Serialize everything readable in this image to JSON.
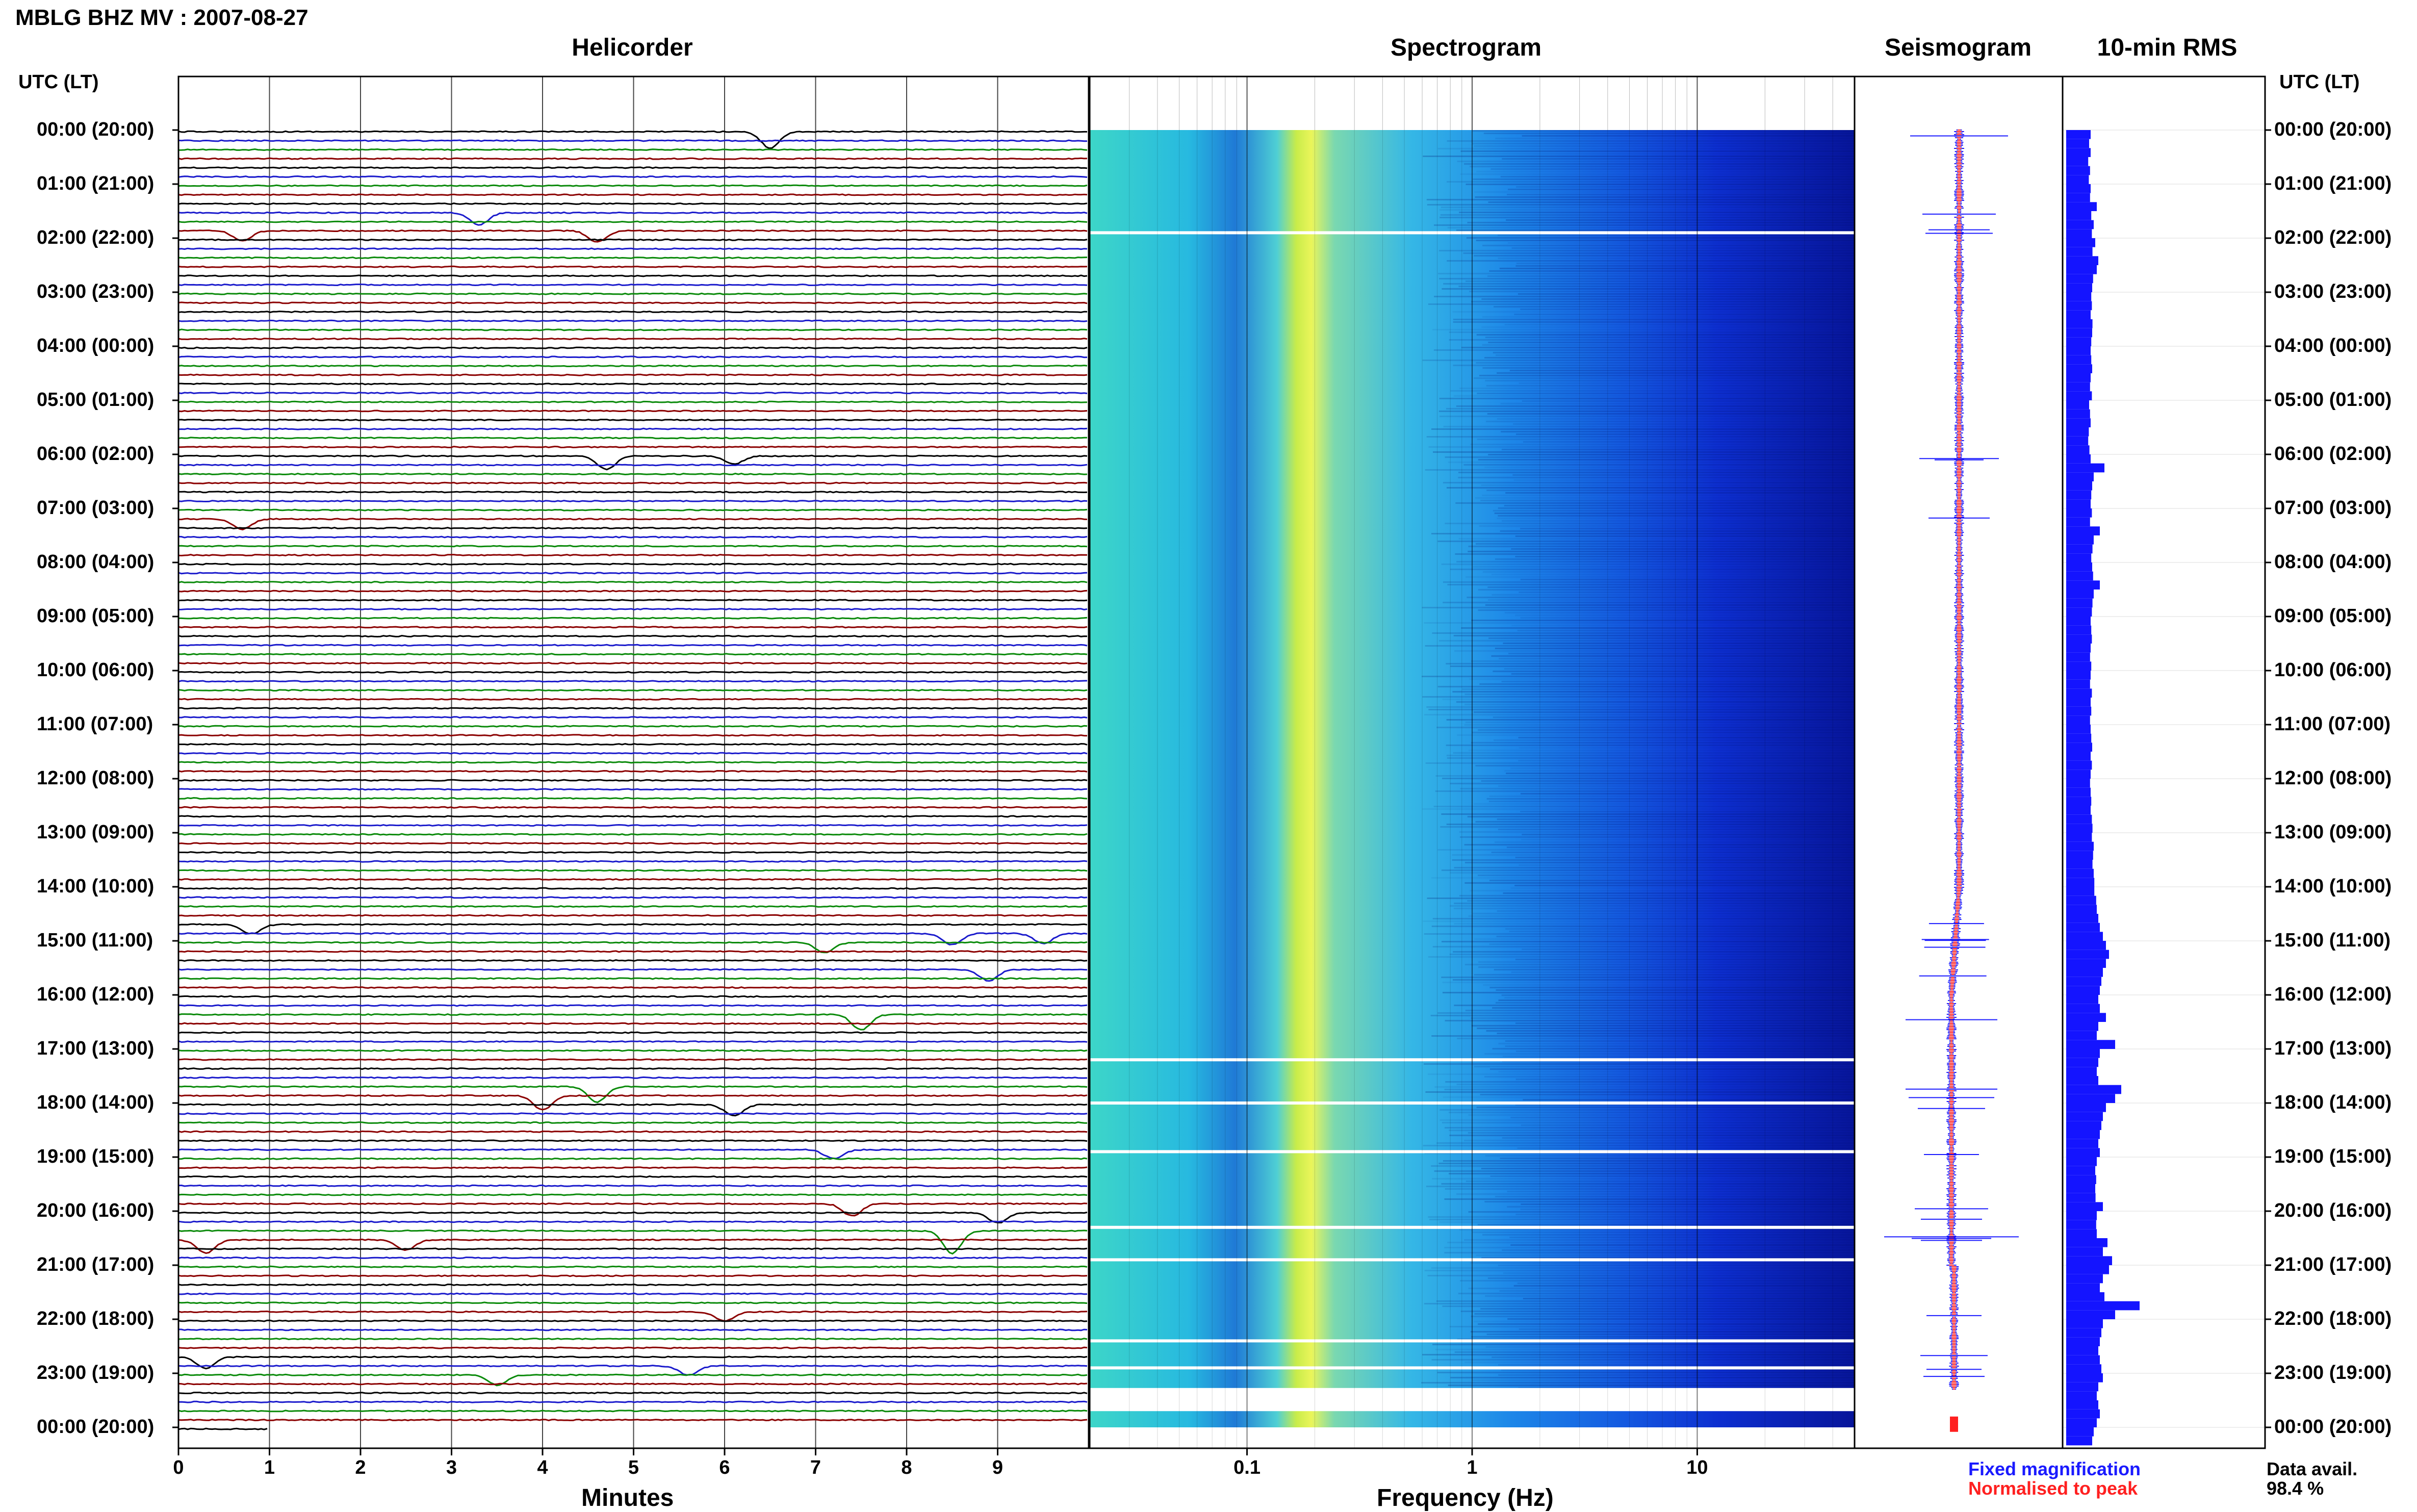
{
  "header": {
    "station_title": "MBLG BHZ MV : 2007-08-27",
    "utc_label": "UTC (LT)",
    "utc_label_right": "UTC (LT)"
  },
  "panels": {
    "helicorder": "Helicorder",
    "spectrogram": "Spectrogram",
    "seismogram": "Seismogram",
    "rms": "10-min RMS"
  },
  "time_labels": [
    "00:00 (20:00)",
    "01:00 (21:00)",
    "02:00 (22:00)",
    "03:00 (23:00)",
    "04:00 (00:00)",
    "05:00 (01:00)",
    "06:00 (02:00)",
    "07:00 (03:00)",
    "08:00 (04:00)",
    "09:00 (05:00)",
    "10:00 (06:00)",
    "11:00 (07:00)",
    "12:00 (08:00)",
    "13:00 (09:00)",
    "14:00 (10:00)",
    "15:00 (11:00)",
    "16:00 (12:00)",
    "17:00 (13:00)",
    "18:00 (14:00)",
    "19:00 (15:00)",
    "20:00 (16:00)",
    "21:00 (17:00)",
    "22:00 (18:00)",
    "23:00 (19:00)",
    "00:00 (20:00)"
  ],
  "footer": {
    "minutes_label": "Minutes",
    "frequency_label": "Frequency (Hz)",
    "fixed_magnification": "Fixed magnification",
    "normalised_to_peak": "Normalised to peak",
    "data_avail_label": "Data avail.",
    "data_avail_value": "98.4 %"
  },
  "colors": {
    "trace_cycle": [
      "#000000",
      "#1a1acc",
      "#0a8a0a",
      "#8b0000"
    ],
    "seismogram_fixed": "#1a1aff",
    "seismogram_norm": "#ff2020",
    "rms_bar": "#1414ff"
  },
  "chart_data": [
    {
      "type": "line",
      "name": "helicorder",
      "title": "Helicorder",
      "xlabel": "Minutes",
      "x_ticks": [
        0,
        1,
        2,
        3,
        4,
        5,
        6,
        7,
        8,
        9
      ],
      "xlim": [
        0,
        10
      ],
      "rows_per_hour": 6,
      "row_minutes": 10,
      "hours": 24,
      "events": [
        {
          "row": 0,
          "minute": 6.5,
          "amp": 1.6
        },
        {
          "row": 9,
          "minute": 3.3,
          "amp": 1.2
        },
        {
          "row": 11,
          "minute": 4.6,
          "amp": 1.1
        },
        {
          "row": 11,
          "minute": 0.7,
          "amp": 1.0
        },
        {
          "row": 36,
          "minute": 4.7,
          "amp": 1.3
        },
        {
          "row": 36,
          "minute": 6.1,
          "amp": 0.8
        },
        {
          "row": 43,
          "minute": 0.7,
          "amp": 1.0
        },
        {
          "row": 88,
          "minute": 0.8,
          "amp": 0.9
        },
        {
          "row": 89,
          "minute": 8.5,
          "amp": 1.1
        },
        {
          "row": 89,
          "minute": 9.5,
          "amp": 1.0
        },
        {
          "row": 90,
          "minute": 7.1,
          "amp": 1.0
        },
        {
          "row": 93,
          "minute": 8.9,
          "amp": 1.1
        },
        {
          "row": 98,
          "minute": 7.5,
          "amp": 1.5
        },
        {
          "row": 106,
          "minute": 4.6,
          "amp": 1.5
        },
        {
          "row": 107,
          "minute": 4.0,
          "amp": 1.4
        },
        {
          "row": 108,
          "minute": 6.1,
          "amp": 1.1
        },
        {
          "row": 113,
          "minute": 7.2,
          "amp": 0.9
        },
        {
          "row": 119,
          "minute": 7.4,
          "amp": 1.2
        },
        {
          "row": 120,
          "minute": 9.0,
          "amp": 1.0
        },
        {
          "row": 122,
          "minute": 8.5,
          "amp": 2.2
        },
        {
          "row": 123,
          "minute": 0.3,
          "amp": 1.3
        },
        {
          "row": 123,
          "minute": 2.5,
          "amp": 1.0
        },
        {
          "row": 131,
          "minute": 6.0,
          "amp": 0.9
        },
        {
          "row": 136,
          "minute": 0.3,
          "amp": 1.1
        },
        {
          "row": 137,
          "minute": 5.6,
          "amp": 0.9
        },
        {
          "row": 138,
          "minute": 3.5,
          "amp": 1.0
        }
      ]
    },
    {
      "type": "heatmap",
      "name": "spectrogram",
      "title": "Spectrogram",
      "xlabel": "Frequency (Hz)",
      "x_scale": "log",
      "xlim": [
        0.02,
        50
      ],
      "x_ticks": [
        0.1,
        1,
        10
      ],
      "x_tick_labels": [
        "0.1",
        "1",
        "10"
      ],
      "peak_band_hz": [
        0.18,
        0.3
      ],
      "gap_hours": [
        1.9,
        17.2,
        18.0,
        18.9,
        20.3,
        20.9,
        22.4,
        22.9,
        23.3
      ]
    },
    {
      "type": "line",
      "name": "seismogram",
      "title": "Seismogram",
      "series": [
        {
          "name": "Fixed magnification",
          "color": "#1a1aff"
        },
        {
          "name": "Normalised to peak",
          "color": "#ff2020"
        }
      ]
    },
    {
      "type": "bar",
      "name": "10-min RMS",
      "title": "10-min RMS",
      "orientation": "horizontal",
      "bin_minutes": 10,
      "values": [
        0.8,
        0.75,
        0.8,
        0.72,
        0.78,
        0.74,
        0.8,
        0.78,
        1.0,
        0.82,
        0.9,
        0.84,
        0.95,
        0.86,
        1.05,
        1.0,
        0.88,
        0.85,
        0.82,
        0.84,
        0.8,
        0.86,
        0.85,
        0.82,
        0.8,
        0.82,
        0.85,
        0.8,
        0.78,
        0.84,
        0.75,
        0.78,
        0.8,
        0.74,
        0.72,
        0.76,
        0.8,
        1.25,
        0.9,
        0.85,
        0.82,
        0.8,
        0.84,
        0.78,
        1.1,
        0.9,
        0.86,
        0.82,
        0.85,
        0.88,
        1.1,
        0.9,
        0.86,
        0.84,
        0.8,
        0.82,
        0.84,
        0.8,
        0.78,
        0.82,
        0.8,
        0.78,
        0.84,
        0.8,
        0.82,
        0.78,
        0.8,
        0.82,
        0.85,
        0.8,
        0.84,
        0.8,
        0.78,
        0.8,
        0.82,
        0.8,
        0.84,
        0.86,
        0.84,
        0.9,
        0.88,
        0.86,
        0.9,
        0.92,
        0.92,
        0.98,
        1.0,
        1.05,
        1.1,
        1.2,
        1.3,
        1.4,
        1.3,
        1.2,
        1.15,
        1.1,
        1.05,
        1.1,
        1.3,
        1.05,
        1.0,
        1.6,
        1.1,
        1.05,
        1.0,
        1.05,
        1.8,
        1.6,
        1.3,
        1.2,
        1.15,
        1.1,
        1.05,
        1.1,
        1.0,
        0.95,
        0.98,
        0.95,
        0.96,
        1.2,
        1.0,
        0.98,
        1.0,
        1.35,
        1.2,
        1.5,
        1.4,
        1.2,
        1.1,
        1.25,
        2.4,
        1.6,
        1.2,
        1.15,
        1.1,
        1.05,
        1.1,
        1.15,
        1.2,
        1.05,
        1.0,
        1.05,
        1.1,
        1.0,
        0.9,
        0.85
      ]
    }
  ]
}
